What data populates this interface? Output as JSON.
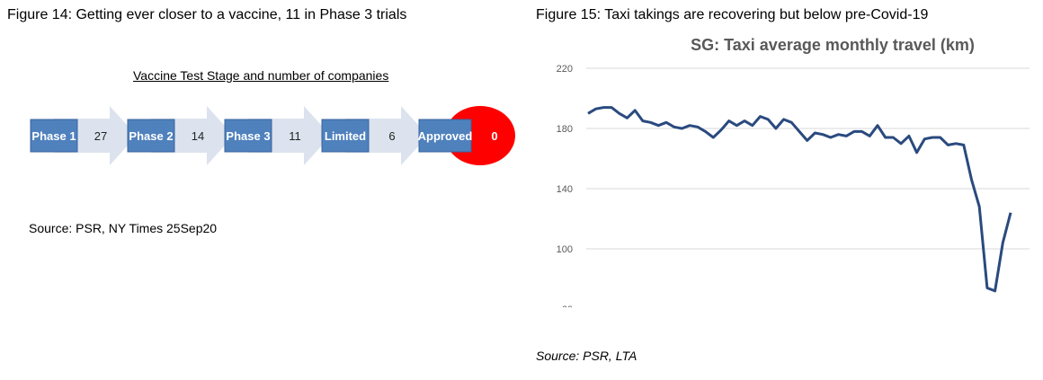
{
  "figure14": {
    "title": "Figure 14: Getting ever closer to a vaccine, 11 in Phase 3 trials",
    "heading": "Vaccine Test Stage and number of companies",
    "stages": [
      {
        "label": "Phase 1",
        "count": "27"
      },
      {
        "label": "Phase 2",
        "count": "14"
      },
      {
        "label": "Phase 3",
        "count": "11"
      },
      {
        "label": "Limited",
        "count": "6"
      },
      {
        "label": "Approved",
        "count": "0"
      }
    ],
    "source": "Source: PSR, NY Times 25Sep20",
    "colors": {
      "box": "#4f81bd",
      "arrow": "#dce3ee",
      "approved_oval": "#ff0000"
    }
  },
  "figure15": {
    "title": "Figure 15: Taxi takings are recovering but below pre-Covid-19",
    "source": "Source: PSR, LTA"
  },
  "chart_data": {
    "type": "line",
    "title": "SG: Taxi average monthly travel (km)",
    "xlabel": "",
    "ylabel": "",
    "ylim": [
      60,
      220
    ],
    "yticks": [
      220,
      180,
      140,
      100,
      60
    ],
    "grid": true,
    "line_color": "#2a4a7f",
    "series": [
      {
        "values": [
          190,
          193,
          194,
          194,
          190,
          187,
          192,
          185,
          184,
          182,
          184,
          181,
          180,
          182,
          181,
          178,
          174,
          179,
          185,
          182,
          185,
          182,
          188,
          186,
          180,
          186,
          184,
          178,
          172,
          177,
          176,
          174,
          176,
          175,
          178,
          178,
          175,
          182,
          174,
          174,
          170,
          175,
          164,
          173,
          174,
          174,
          169,
          170,
          169,
          146,
          128,
          74,
          72,
          104,
          124
        ]
      }
    ]
  }
}
